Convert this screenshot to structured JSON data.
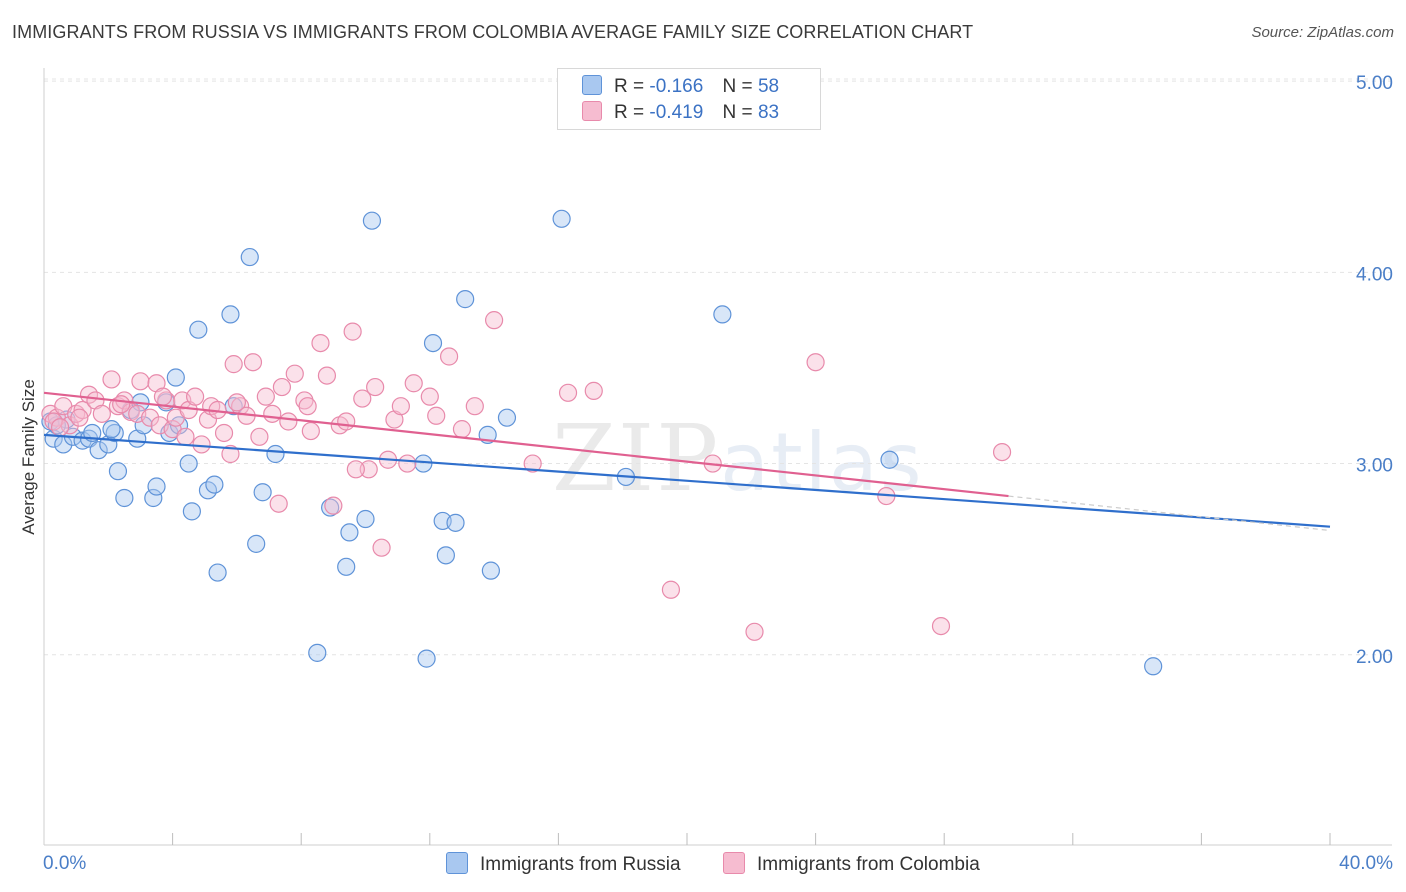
{
  "header": {
    "title": "IMMIGRANTS FROM RUSSIA VS IMMIGRANTS FROM COLOMBIA AVERAGE FAMILY SIZE CORRELATION CHART",
    "source": "Source: ZipAtlas.com"
  },
  "watermark": {
    "part1": "ZIP",
    "part2": "atlas"
  },
  "legend": {
    "russia": {
      "r_label": "R =",
      "r_value": "-0.166",
      "n_label": "N =",
      "n_value": "58"
    },
    "colombia": {
      "r_label": "R =",
      "r_value": "-0.419",
      "n_label": "N =",
      "n_value": "83"
    }
  },
  "colors": {
    "russia_fill": "#a9c8f0",
    "russia_stroke": "#5f93d8",
    "russia_line": "#2f6fcc",
    "colombia_fill": "#f6bcd0",
    "colombia_stroke": "#e88aab",
    "colombia_line": "#e06090",
    "grid": "#e4e4e4",
    "tick_label": "#4a7ec7"
  },
  "chart_data": {
    "type": "scatter",
    "title": "IMMIGRANTS FROM RUSSIA VS IMMIGRANTS FROM COLOMBIA AVERAGE FAMILY SIZE CORRELATION CHART",
    "xlabel": "",
    "ylabel": "Average Family Size",
    "xlim": [
      0,
      40
    ],
    "ylim": [
      1.0,
      5.1
    ],
    "y_ticks": [
      2.0,
      3.0,
      4.0,
      5.0
    ],
    "y_tick_labels": [
      "2.00",
      "3.00",
      "4.00",
      "5.00"
    ],
    "x_tick_labels": [
      "0.0%",
      "40.0%"
    ],
    "grid": true,
    "legend_position": "top-center",
    "series": [
      {
        "name": "Immigrants from Russia",
        "trend": {
          "x": [
            0.0,
            40.0
          ],
          "y": [
            3.15,
            2.67
          ]
        },
        "points": [
          {
            "x": 0.2,
            "y": 3.22
          },
          {
            "x": 0.3,
            "y": 3.13
          },
          {
            "x": 0.6,
            "y": 3.1
          },
          {
            "x": 0.7,
            "y": 3.23
          },
          {
            "x": 0.9,
            "y": 3.14
          },
          {
            "x": 1.2,
            "y": 3.12
          },
          {
            "x": 1.4,
            "y": 3.13
          },
          {
            "x": 1.5,
            "y": 3.16
          },
          {
            "x": 1.7,
            "y": 3.07
          },
          {
            "x": 2.0,
            "y": 3.1
          },
          {
            "x": 2.2,
            "y": 3.16
          },
          {
            "x": 2.3,
            "y": 2.96
          },
          {
            "x": 2.5,
            "y": 2.82
          },
          {
            "x": 2.7,
            "y": 3.28
          },
          {
            "x": 2.9,
            "y": 3.13
          },
          {
            "x": 3.0,
            "y": 3.32
          },
          {
            "x": 3.1,
            "y": 3.2
          },
          {
            "x": 3.4,
            "y": 2.82
          },
          {
            "x": 3.5,
            "y": 2.88
          },
          {
            "x": 3.8,
            "y": 3.32
          },
          {
            "x": 3.9,
            "y": 3.16
          },
          {
            "x": 4.1,
            "y": 3.45
          },
          {
            "x": 4.2,
            "y": 3.2
          },
          {
            "x": 4.5,
            "y": 3.0
          },
          {
            "x": 4.6,
            "y": 2.75
          },
          {
            "x": 4.8,
            "y": 3.7
          },
          {
            "x": 5.1,
            "y": 2.86
          },
          {
            "x": 5.3,
            "y": 2.89
          },
          {
            "x": 5.4,
            "y": 2.43
          },
          {
            "x": 5.8,
            "y": 3.78
          },
          {
            "x": 5.9,
            "y": 3.3
          },
          {
            "x": 6.4,
            "y": 4.08
          },
          {
            "x": 6.6,
            "y": 2.58
          },
          {
            "x": 6.8,
            "y": 2.85
          },
          {
            "x": 7.2,
            "y": 3.05
          },
          {
            "x": 8.5,
            "y": 2.01
          },
          {
            "x": 8.9,
            "y": 2.77
          },
          {
            "x": 9.4,
            "y": 2.46
          },
          {
            "x": 9.5,
            "y": 2.64
          },
          {
            "x": 10.0,
            "y": 2.71
          },
          {
            "x": 10.2,
            "y": 4.27
          },
          {
            "x": 11.8,
            "y": 3.0
          },
          {
            "x": 11.9,
            "y": 1.98
          },
          {
            "x": 12.1,
            "y": 3.63
          },
          {
            "x": 12.4,
            "y": 2.7
          },
          {
            "x": 12.5,
            "y": 2.52
          },
          {
            "x": 12.8,
            "y": 2.69
          },
          {
            "x": 13.1,
            "y": 3.86
          },
          {
            "x": 13.8,
            "y": 3.15
          },
          {
            "x": 13.9,
            "y": 2.44
          },
          {
            "x": 14.4,
            "y": 3.24
          },
          {
            "x": 16.1,
            "y": 4.28
          },
          {
            "x": 18.1,
            "y": 2.93
          },
          {
            "x": 21.1,
            "y": 3.78
          },
          {
            "x": 26.3,
            "y": 3.02
          },
          {
            "x": 34.5,
            "y": 1.94
          },
          {
            "x": 0.4,
            "y": 3.2
          },
          {
            "x": 2.1,
            "y": 3.18
          }
        ]
      },
      {
        "name": "Immigrants from Colombia",
        "trend": {
          "x": [
            0.0,
            30.0
          ],
          "y": [
            3.37,
            2.83
          ]
        },
        "points": [
          {
            "x": 0.2,
            "y": 3.26
          },
          {
            "x": 0.4,
            "y": 3.24
          },
          {
            "x": 0.6,
            "y": 3.3
          },
          {
            "x": 0.8,
            "y": 3.2
          },
          {
            "x": 1.0,
            "y": 3.26
          },
          {
            "x": 1.2,
            "y": 3.28
          },
          {
            "x": 1.4,
            "y": 3.36
          },
          {
            "x": 1.6,
            "y": 3.33
          },
          {
            "x": 1.8,
            "y": 3.26
          },
          {
            "x": 2.1,
            "y": 3.44
          },
          {
            "x": 2.3,
            "y": 3.3
          },
          {
            "x": 2.5,
            "y": 3.33
          },
          {
            "x": 2.7,
            "y": 3.27
          },
          {
            "x": 2.9,
            "y": 3.26
          },
          {
            "x": 3.0,
            "y": 3.43
          },
          {
            "x": 3.3,
            "y": 3.24
          },
          {
            "x": 3.5,
            "y": 3.42
          },
          {
            "x": 3.6,
            "y": 3.2
          },
          {
            "x": 3.8,
            "y": 3.33
          },
          {
            "x": 4.0,
            "y": 3.18
          },
          {
            "x": 4.1,
            "y": 3.24
          },
          {
            "x": 4.3,
            "y": 3.33
          },
          {
            "x": 4.5,
            "y": 3.28
          },
          {
            "x": 4.7,
            "y": 3.35
          },
          {
            "x": 4.9,
            "y": 3.1
          },
          {
            "x": 5.1,
            "y": 3.23
          },
          {
            "x": 5.2,
            "y": 3.3
          },
          {
            "x": 5.4,
            "y": 3.28
          },
          {
            "x": 5.6,
            "y": 3.16
          },
          {
            "x": 5.8,
            "y": 3.05
          },
          {
            "x": 5.9,
            "y": 3.52
          },
          {
            "x": 6.1,
            "y": 3.3
          },
          {
            "x": 6.3,
            "y": 3.25
          },
          {
            "x": 6.5,
            "y": 3.53
          },
          {
            "x": 6.7,
            "y": 3.14
          },
          {
            "x": 6.9,
            "y": 3.35
          },
          {
            "x": 7.1,
            "y": 3.26
          },
          {
            "x": 7.3,
            "y": 2.79
          },
          {
            "x": 7.6,
            "y": 3.22
          },
          {
            "x": 7.8,
            "y": 3.47
          },
          {
            "x": 8.1,
            "y": 3.33
          },
          {
            "x": 8.3,
            "y": 3.17
          },
          {
            "x": 8.6,
            "y": 3.63
          },
          {
            "x": 8.8,
            "y": 3.46
          },
          {
            "x": 9.0,
            "y": 2.78
          },
          {
            "x": 9.2,
            "y": 3.2
          },
          {
            "x": 9.4,
            "y": 3.22
          },
          {
            "x": 9.6,
            "y": 3.69
          },
          {
            "x": 9.9,
            "y": 3.34
          },
          {
            "x": 10.1,
            "y": 2.97
          },
          {
            "x": 10.3,
            "y": 3.4
          },
          {
            "x": 10.5,
            "y": 2.56
          },
          {
            "x": 10.7,
            "y": 3.02
          },
          {
            "x": 10.9,
            "y": 3.23
          },
          {
            "x": 11.1,
            "y": 3.3
          },
          {
            "x": 11.5,
            "y": 3.42
          },
          {
            "x": 12.0,
            "y": 3.35
          },
          {
            "x": 12.2,
            "y": 3.25
          },
          {
            "x": 12.6,
            "y": 3.56
          },
          {
            "x": 13.0,
            "y": 3.18
          },
          {
            "x": 13.4,
            "y": 3.3
          },
          {
            "x": 14.0,
            "y": 3.75
          },
          {
            "x": 15.2,
            "y": 3.0
          },
          {
            "x": 16.3,
            "y": 3.37
          },
          {
            "x": 17.1,
            "y": 3.38
          },
          {
            "x": 19.5,
            "y": 2.34
          },
          {
            "x": 20.8,
            "y": 3.0
          },
          {
            "x": 22.1,
            "y": 2.12
          },
          {
            "x": 24.0,
            "y": 3.53
          },
          {
            "x": 26.2,
            "y": 2.83
          },
          {
            "x": 27.9,
            "y": 2.15
          },
          {
            "x": 29.8,
            "y": 3.06
          },
          {
            "x": 0.3,
            "y": 3.22
          },
          {
            "x": 1.1,
            "y": 3.24
          },
          {
            "x": 3.7,
            "y": 3.35
          },
          {
            "x": 4.4,
            "y": 3.14
          },
          {
            "x": 6.0,
            "y": 3.32
          },
          {
            "x": 7.4,
            "y": 3.4
          },
          {
            "x": 8.2,
            "y": 3.3
          },
          {
            "x": 9.7,
            "y": 2.97
          },
          {
            "x": 11.3,
            "y": 3.0
          },
          {
            "x": 0.5,
            "y": 3.19
          },
          {
            "x": 2.4,
            "y": 3.31
          }
        ]
      }
    ]
  }
}
